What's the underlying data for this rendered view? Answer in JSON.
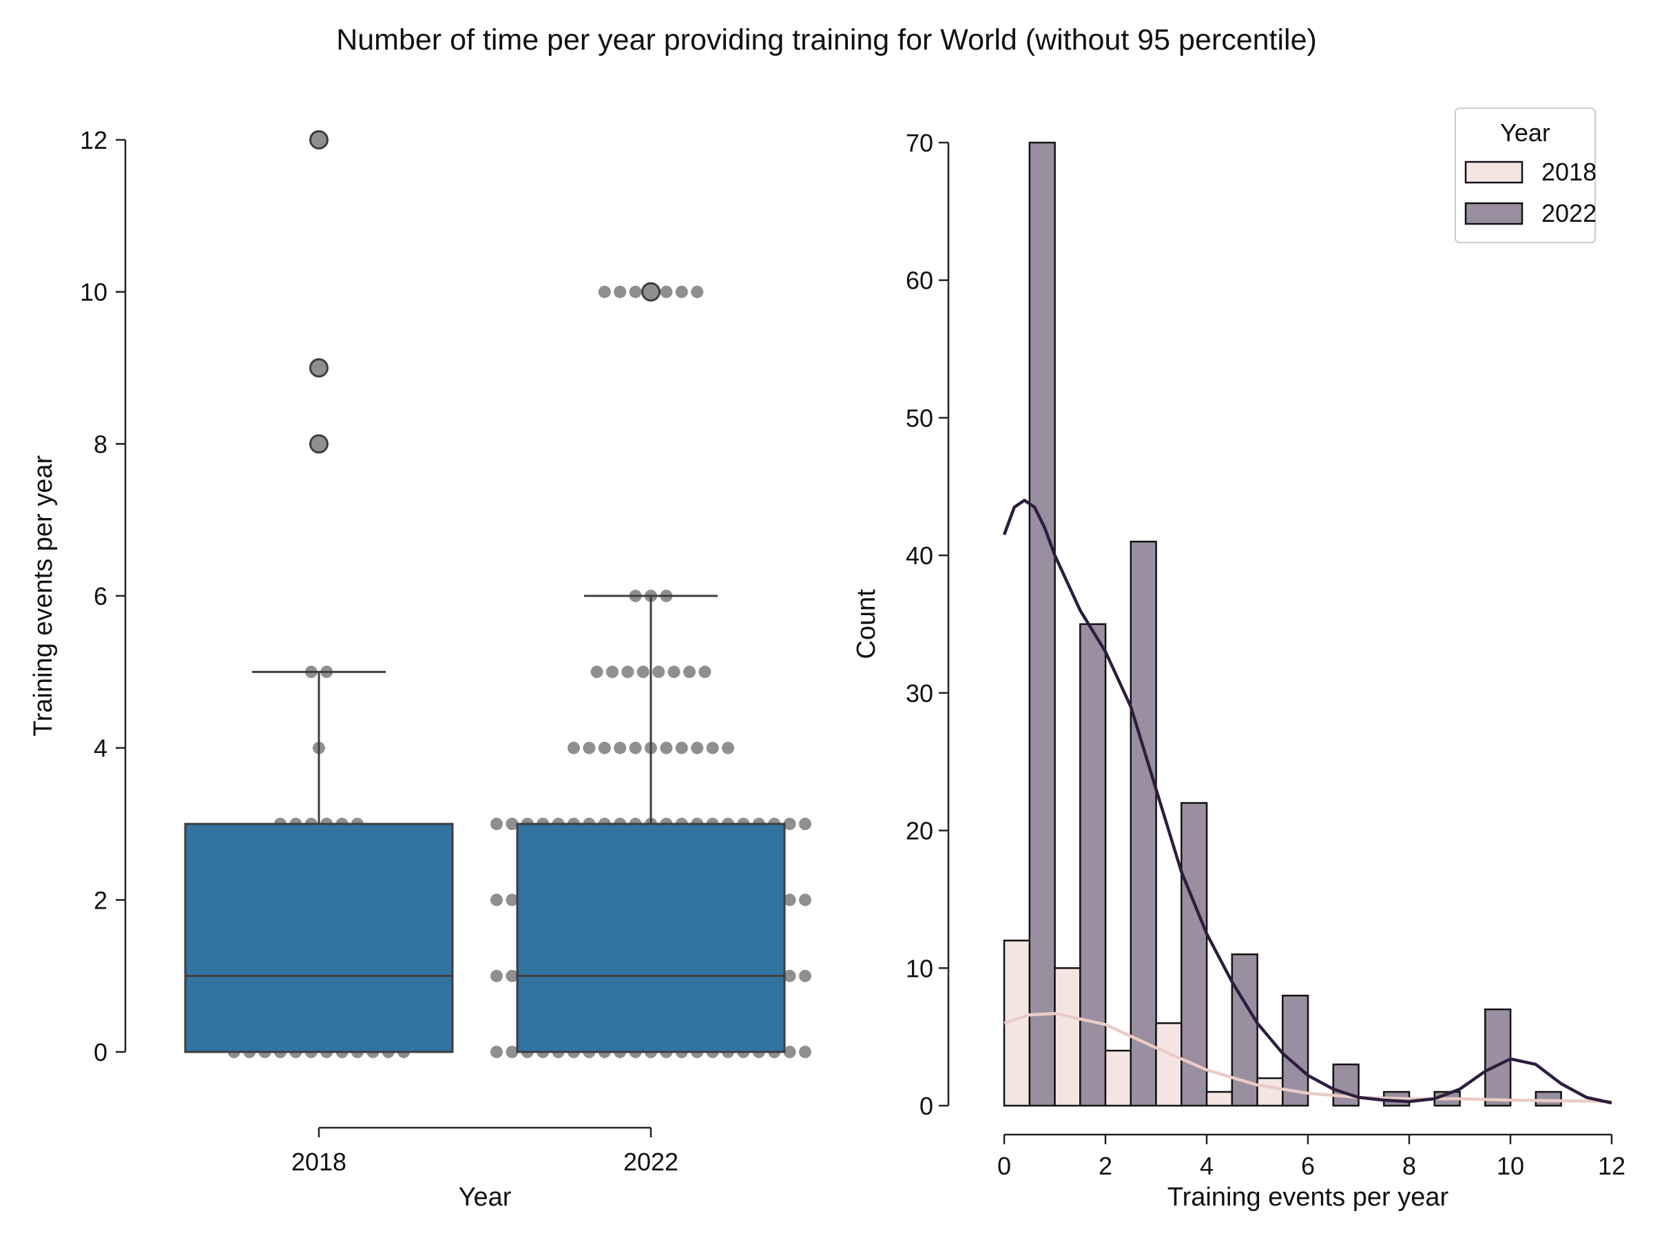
{
  "figure": {
    "title": "Number of time per year providing training for World (without 95 percentile)"
  },
  "chart_data": [
    {
      "type": "box",
      "xlabel": "Year",
      "ylabel": "Training events per year",
      "categories": [
        "2018",
        "2022"
      ],
      "ylim": [
        0,
        12
      ],
      "yticks": [
        0,
        2,
        4,
        6,
        8,
        10,
        12
      ],
      "box_color": "#3274a1",
      "point_color": "#8f8f8f",
      "boxes": [
        {
          "category": "2018",
          "q1": 0,
          "median": 1,
          "q3": 3,
          "whisker_low": 0,
          "whisker_high": 5,
          "outliers": [
            8,
            9,
            12
          ]
        },
        {
          "category": "2022",
          "q1": 0,
          "median": 1,
          "q3": 3,
          "whisker_low": 0,
          "whisker_high": 6,
          "outliers": [
            10
          ]
        }
      ],
      "swarm": [
        {
          "category": "2018",
          "counts": [
            {
              "y": 0,
              "n": 12
            },
            {
              "y": 1,
              "n": 10
            },
            {
              "y": 2,
              "n": 4
            },
            {
              "y": 3,
              "n": 6
            },
            {
              "y": 4,
              "n": 1
            },
            {
              "y": 5,
              "n": 2
            },
            {
              "y": 8,
              "n": 1
            },
            {
              "y": 9,
              "n": 1
            },
            {
              "y": 12,
              "n": 1
            }
          ]
        },
        {
          "category": "2022",
          "counts": [
            {
              "y": 0,
              "n": 21
            },
            {
              "y": 1,
              "n": 21
            },
            {
              "y": 2,
              "n": 21
            },
            {
              "y": 3,
              "n": 21
            },
            {
              "y": 4,
              "n": 11
            },
            {
              "y": 5,
              "n": 8
            },
            {
              "y": 6,
              "n": 3
            },
            {
              "y": 10,
              "n": 7
            }
          ]
        }
      ]
    },
    {
      "type": "histogram",
      "xlabel": "Training events per year",
      "ylabel": "Count",
      "xlim": [
        0,
        12
      ],
      "ylim": [
        0,
        70
      ],
      "xticks": [
        0,
        2,
        4,
        6,
        8,
        10,
        12
      ],
      "yticks": [
        0,
        10,
        20,
        30,
        40,
        50,
        60,
        70
      ],
      "bin_edges": [
        0,
        1,
        2,
        3,
        4,
        5,
        6,
        7,
        8,
        9,
        10,
        11,
        12
      ],
      "legend": {
        "title": "Year",
        "position": "top-right"
      },
      "series": [
        {
          "name": "2018",
          "color": "#f4e5e3",
          "kde_color": "#ebcbc6",
          "counts": [
            12,
            10,
            4,
            6,
            1,
            2,
            0,
            0,
            0,
            0,
            0,
            0
          ],
          "kde": [
            [
              0,
              6
            ],
            [
              0.5,
              6.6
            ],
            [
              1,
              6.7
            ],
            [
              2,
              5.9
            ],
            [
              3,
              4.2
            ],
            [
              4,
              2.6
            ],
            [
              5,
              1.5
            ],
            [
              6,
              0.9
            ],
            [
              7,
              0.6
            ],
            [
              8,
              0.5
            ],
            [
              9,
              0.5
            ],
            [
              10,
              0.4
            ],
            [
              11,
              0.35
            ],
            [
              12,
              0.3
            ]
          ]
        },
        {
          "name": "2022",
          "color": "#9a8fa0",
          "kde_color": "#2d1e3e",
          "counts": [
            70,
            35,
            41,
            22,
            11,
            8,
            3,
            1,
            1,
            7,
            1,
            0
          ],
          "kde": [
            [
              0,
              41.5
            ],
            [
              0.2,
              43.5
            ],
            [
              0.4,
              44
            ],
            [
              0.6,
              43.5
            ],
            [
              0.8,
              42
            ],
            [
              1,
              40
            ],
            [
              1.5,
              36
            ],
            [
              2,
              33
            ],
            [
              2.5,
              29
            ],
            [
              3,
              23
            ],
            [
              3.5,
              17
            ],
            [
              4,
              12.5
            ],
            [
              4.5,
              9
            ],
            [
              5,
              6
            ],
            [
              5.5,
              3.8
            ],
            [
              6,
              2.2
            ],
            [
              6.5,
              1.2
            ],
            [
              7,
              0.6
            ],
            [
              7.5,
              0.4
            ],
            [
              8,
              0.3
            ],
            [
              8.5,
              0.5
            ],
            [
              9,
              1.2
            ],
            [
              9.5,
              2.5
            ],
            [
              10,
              3.4
            ],
            [
              10.5,
              3
            ],
            [
              11,
              1.6
            ],
            [
              11.5,
              0.6
            ],
            [
              12,
              0.2
            ]
          ]
        }
      ]
    }
  ]
}
